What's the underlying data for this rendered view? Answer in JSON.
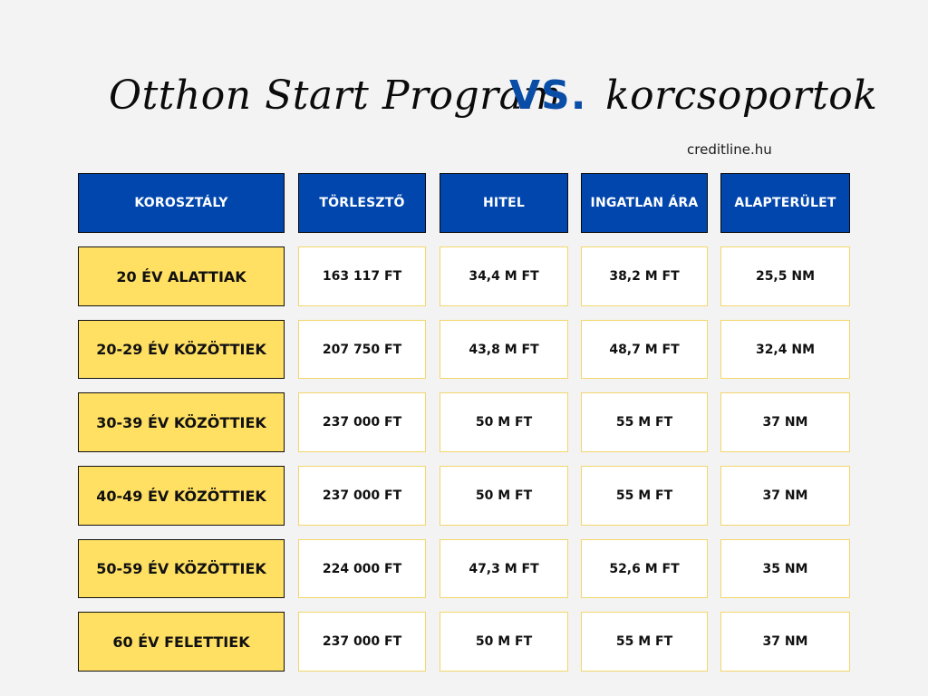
{
  "title": {
    "left": "Otthon Start Program",
    "vs": "VS.",
    "right": "korcsoportok"
  },
  "website": "creditline.hu",
  "colors": {
    "header_blue": "#0046ad",
    "vs_blue": "#0a4da6",
    "age_yellow": "#ffe063",
    "cell_border": "#f2d66c",
    "background": "#f3f3f3"
  },
  "table": {
    "headers": [
      "KOROSZTÁLY",
      "TÖRLESZTŐ",
      "HITEL",
      "INGATLAN ÁRA",
      "ALAPTERÜLET"
    ],
    "rows": [
      [
        "20 ÉV ALATTIAK",
        "163 117 FT",
        "34,4 M FT",
        "38,2 M FT",
        "25,5 NM"
      ],
      [
        "20-29 ÉV KÖZÖTTIEK",
        "207 750 FT",
        "43,8 M FT",
        "48,7 M FT",
        "32,4 NM"
      ],
      [
        "30-39 ÉV KÖZÖTTIEK",
        "237 000 FT",
        "50 M FT",
        "55 M FT",
        "37 NM"
      ],
      [
        "40-49 ÉV KÖZÖTTIEK",
        "237 000 FT",
        "50 M FT",
        "55 M FT",
        "37 NM"
      ],
      [
        "50-59 ÉV KÖZÖTTIEK",
        "224 000 FT",
        "47,3 M FT",
        "52,6 M FT",
        "35 NM"
      ],
      [
        "60 ÉV FELETTIEK",
        "237 000 FT",
        "50 M FT",
        "55 M FT",
        "37 NM"
      ]
    ]
  }
}
